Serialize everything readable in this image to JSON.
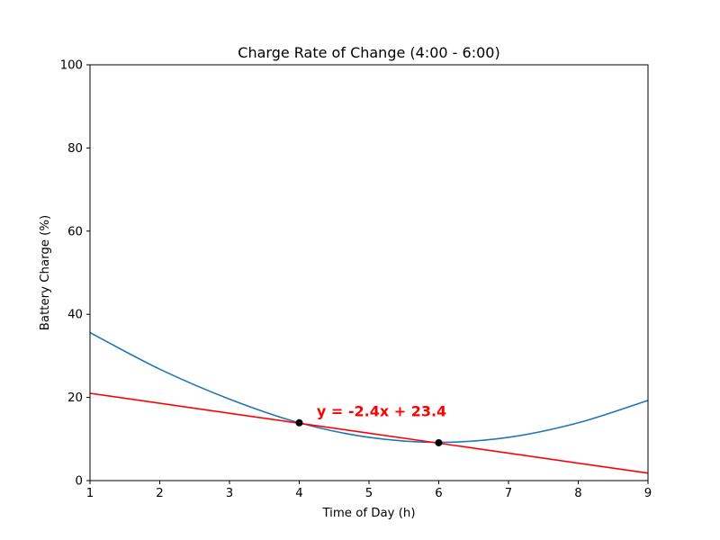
{
  "chart_data": {
    "type": "line",
    "title": "Charge Rate of Change (4:00 - 6:00)",
    "xlabel": "Time of Day (h)",
    "ylabel": "Battery Charge (%)",
    "xlim": [
      1,
      9
    ],
    "ylim": [
      0,
      100
    ],
    "x_ticks": [
      1,
      2,
      3,
      4,
      5,
      6,
      7,
      8,
      9
    ],
    "y_ticks": [
      0,
      20,
      40,
      60,
      80,
      100
    ],
    "grid": false,
    "series": [
      {
        "x": [
          1,
          2,
          3,
          4,
          5,
          6,
          7,
          8,
          9
        ],
        "values": [
          35.6,
          26.8,
          19.6,
          13.9,
          10.4,
          9.2,
          10.4,
          13.9,
          19.3
        ],
        "color": "#1f77b4",
        "style": "solid-curve"
      },
      {
        "x": [
          1,
          9
        ],
        "values": [
          21.0,
          1.8
        ],
        "color": "#ff0000",
        "style": "secant-line"
      }
    ],
    "points": [
      {
        "x": 4,
        "y": 13.9,
        "color": "#000000"
      },
      {
        "x": 6,
        "y": 9.1,
        "color": "#000000"
      }
    ],
    "annotations": [
      {
        "text": "y = -2.4x + 23.4",
        "x": 4.25,
        "y": 15.5,
        "color": "#ff0000"
      }
    ]
  }
}
